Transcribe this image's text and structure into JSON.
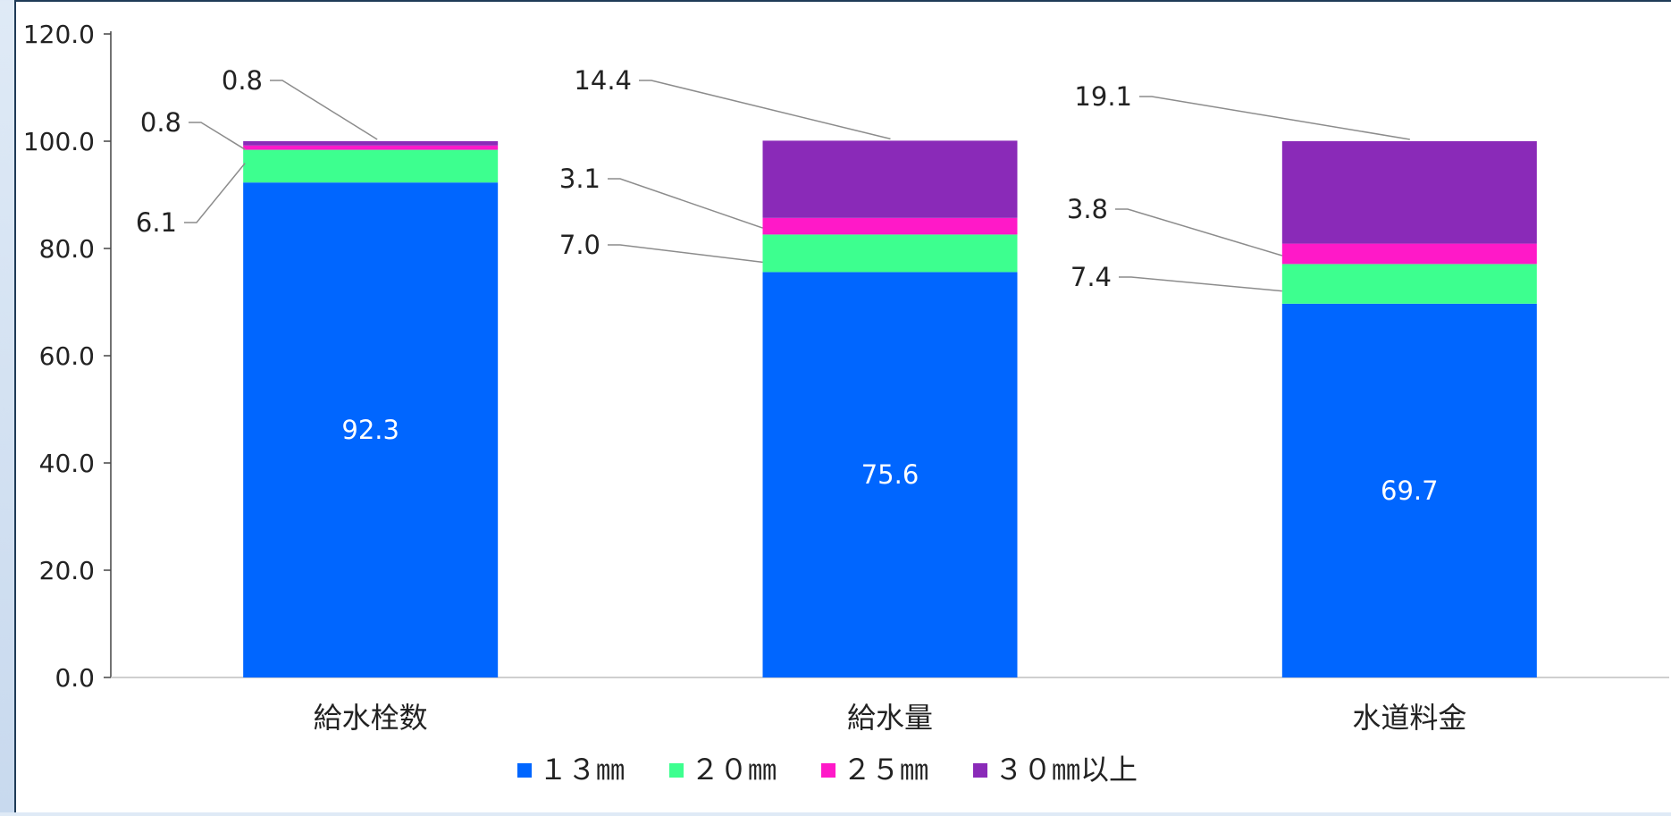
{
  "chart_data": {
    "type": "bar",
    "stacked": true,
    "categories": [
      "給水栓数",
      "給水量",
      "水道料金"
    ],
    "ylim": [
      0,
      120
    ],
    "yticks": [
      "0.0",
      "20.0",
      "40.0",
      "60.0",
      "80.0",
      "100.0",
      "120.0"
    ],
    "ytick_values": [
      0,
      20,
      40,
      60,
      80,
      100,
      120
    ],
    "grid": false,
    "legend_position": "bottom",
    "series": [
      {
        "name": "１３㎜",
        "color": "#0066ff",
        "values": [
          92.3,
          75.6,
          69.7
        ],
        "labels": [
          "92.3",
          "75.6",
          "69.7"
        ]
      },
      {
        "name": "２０㎜",
        "color": "#3dff8f",
        "values": [
          6.1,
          7.0,
          7.4
        ],
        "labels": [
          "6.1",
          "7.0",
          "7.4"
        ]
      },
      {
        "name": "２５㎜",
        "color": "#ff19c8",
        "values": [
          0.8,
          3.1,
          3.8
        ],
        "labels": [
          "0.8",
          "3.1",
          "3.8"
        ]
      },
      {
        "name": "３０㎜以上",
        "color": "#8a2ab8",
        "values": [
          0.8,
          14.4,
          19.1
        ],
        "labels": [
          "0.8",
          "14.4",
          "19.1"
        ]
      }
    ]
  }
}
